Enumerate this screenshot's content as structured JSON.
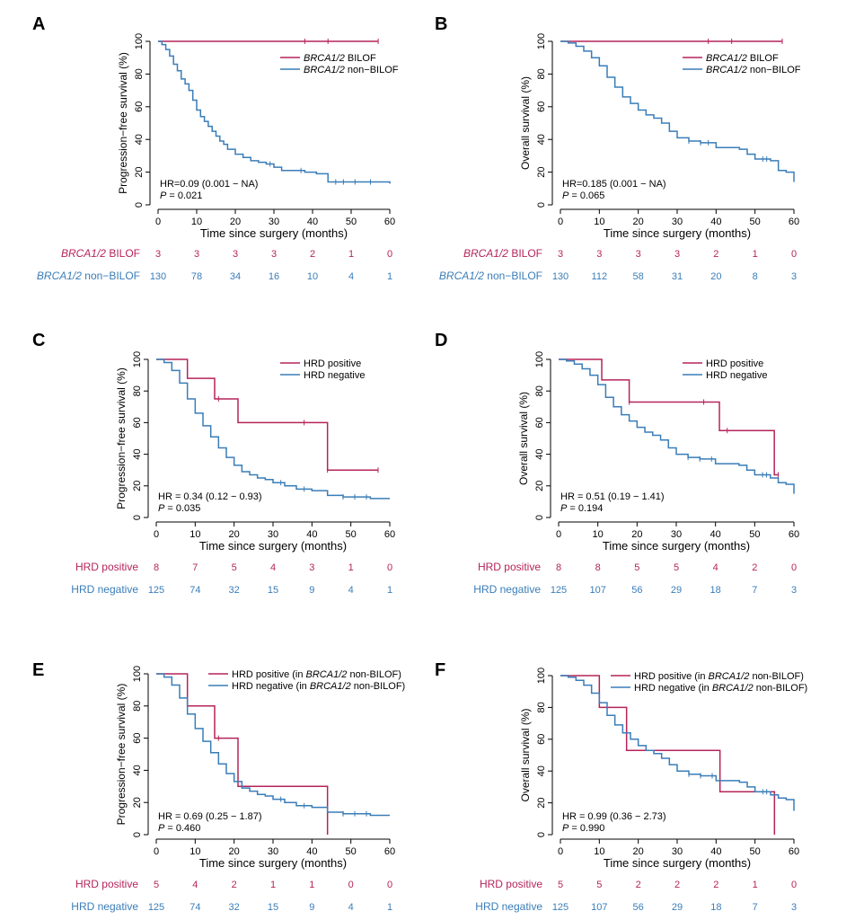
{
  "colors": {
    "group1": "#b5245a",
    "group2": "#3a7db8",
    "axis": "#000000"
  },
  "chart_data": [
    {
      "type": "line",
      "panel_label": "A",
      "ylabel": "Progression−free survival (%)",
      "xlabel": "Time since surgery (months)",
      "xlim": [
        0,
        60
      ],
      "ylim": [
        0,
        100
      ],
      "xticks": [
        "0",
        "10",
        "20",
        "30",
        "40",
        "50",
        "60"
      ],
      "yticks": [
        "0",
        "20",
        "40",
        "60",
        "80",
        "100"
      ],
      "legend": {
        "position": "top-right",
        "items": [
          {
            "prefix": "BRCA1/2",
            "suffix": " BILOF"
          },
          {
            "prefix": "BRCA1/2",
            "suffix": " non−BILOF"
          }
        ]
      },
      "series": [
        {
          "name": "BRCA1/2 BILOF",
          "color": "#b5245a",
          "x": [
            0,
            57
          ],
          "y": [
            100,
            100
          ],
          "censor": [
            38,
            44,
            57
          ]
        },
        {
          "name": "BRCA1/2 non-BILOF",
          "color": "#3a7db8",
          "x": [
            0,
            1,
            2,
            3,
            4,
            5,
            6,
            7,
            8,
            9,
            10,
            11,
            12,
            13,
            14,
            15,
            16,
            17,
            18,
            20,
            22,
            24,
            26,
            28,
            30,
            32,
            35,
            38,
            41,
            44,
            50,
            60
          ],
          "y": [
            100,
            98,
            95,
            91,
            86,
            82,
            77,
            74,
            70,
            64,
            58,
            54,
            51,
            48,
            45,
            42,
            39,
            37,
            34,
            31,
            29,
            27,
            26,
            25,
            23,
            21,
            21,
            20,
            19,
            14,
            14,
            13
          ],
          "censor": [
            29,
            37,
            46,
            48,
            51,
            55
          ]
        }
      ],
      "annotation": {
        "hr": "HR=0.09 (0.001 − NA)",
        "p_label": "P",
        "p_value": " = 0.021"
      },
      "risk_table": {
        "times": [
          0,
          10,
          20,
          30,
          40,
          50,
          60
        ],
        "rows": [
          {
            "label_prefix": "BRCA1/2",
            "label_suffix": " BILOF",
            "values": [
              "3",
              "3",
              "3",
              "3",
              "2",
              "1",
              "0"
            ]
          },
          {
            "label_prefix": "BRCA1/2",
            "label_suffix": " non−BILOF",
            "values": [
              "130",
              "78",
              "34",
              "16",
              "10",
              "4",
              "1"
            ]
          }
        ]
      }
    },
    {
      "type": "line",
      "panel_label": "B",
      "ylabel": "Overall survival (%)",
      "xlabel": "Time since surgery (months)",
      "xlim": [
        0,
        60
      ],
      "ylim": [
        0,
        100
      ],
      "xticks": [
        "0",
        "10",
        "20",
        "30",
        "40",
        "50",
        "60"
      ],
      "yticks": [
        "0",
        "20",
        "40",
        "60",
        "80",
        "100"
      ],
      "legend": {
        "position": "top-right",
        "items": [
          {
            "prefix": "BRCA1/2",
            "suffix": " BILOF"
          },
          {
            "prefix": "BRCA1/2",
            "suffix": " non−BILOF"
          }
        ]
      },
      "series": [
        {
          "name": "BRCA1/2 BILOF",
          "color": "#b5245a",
          "x": [
            0,
            57
          ],
          "y": [
            100,
            100
          ],
          "censor": [
            38,
            44,
            57
          ]
        },
        {
          "name": "BRCA1/2 non-BILOF",
          "color": "#3a7db8",
          "x": [
            0,
            2,
            4,
            6,
            8,
            10,
            12,
            14,
            16,
            18,
            20,
            22,
            24,
            26,
            28,
            30,
            33,
            36,
            40,
            44,
            46,
            48,
            50,
            54,
            56,
            58,
            60
          ],
          "y": [
            100,
            99,
            97,
            94,
            90,
            85,
            78,
            72,
            66,
            62,
            58,
            55,
            53,
            50,
            45,
            41,
            39,
            38,
            35,
            35,
            34,
            31,
            28,
            27,
            21,
            20,
            14
          ],
          "censor": [
            33,
            36,
            38,
            52,
            53
          ]
        }
      ],
      "annotation": {
        "hr": "HR=0.185 (0.001 − NA)",
        "p_label": "P",
        "p_value": " = 0.065"
      },
      "risk_table": {
        "times": [
          0,
          10,
          20,
          30,
          40,
          50,
          60
        ],
        "rows": [
          {
            "label_prefix": "BRCA1/2",
            "label_suffix": " BILOF",
            "values": [
              "3",
              "3",
              "3",
              "3",
              "2",
              "1",
              "0"
            ]
          },
          {
            "label_prefix": "BRCA1/2",
            "label_suffix": " non−BILOF",
            "values": [
              "130",
              "112",
              "58",
              "31",
              "20",
              "8",
              "3"
            ]
          }
        ]
      }
    },
    {
      "type": "line",
      "panel_label": "C",
      "ylabel": "Progression−free survival (%)",
      "xlabel": "Time since surgery (months)",
      "xlim": [
        0,
        60
      ],
      "ylim": [
        0,
        100
      ],
      "xticks": [
        "0",
        "10",
        "20",
        "30",
        "40",
        "50",
        "60"
      ],
      "yticks": [
        "0",
        "20",
        "40",
        "60",
        "80",
        "100"
      ],
      "legend": {
        "position": "top-right",
        "items": [
          {
            "prefix": "",
            "suffix": "HRD positive"
          },
          {
            "prefix": "",
            "suffix": "HRD negative"
          }
        ]
      },
      "series": [
        {
          "name": "HRD positive",
          "color": "#b5245a",
          "x": [
            0,
            8,
            15,
            21,
            44,
            57
          ],
          "y": [
            100,
            88,
            75,
            60,
            30,
            30
          ],
          "censor": [
            16,
            38,
            44,
            57
          ]
        },
        {
          "name": "HRD negative",
          "color": "#3a7db8",
          "x": [
            0,
            2,
            4,
            6,
            8,
            10,
            12,
            14,
            16,
            18,
            20,
            22,
            24,
            26,
            28,
            30,
            33,
            36,
            40,
            44,
            48,
            50,
            55,
            60
          ],
          "y": [
            100,
            98,
            93,
            85,
            75,
            66,
            58,
            51,
            44,
            38,
            33,
            29,
            27,
            25,
            24,
            22,
            20,
            18,
            17,
            14,
            13,
            13,
            12,
            12
          ],
          "censor": [
            32,
            38,
            48,
            51,
            54
          ]
        }
      ],
      "annotation": {
        "hr": "HR = 0.34 (0.12 − 0.93)",
        "p_label": "P",
        "p_value": " = 0.035"
      },
      "risk_table": {
        "times": [
          0,
          10,
          20,
          30,
          40,
          50,
          60
        ],
        "rows": [
          {
            "label_prefix": "",
            "label_suffix": "HRD positive",
            "values": [
              "8",
              "7",
              "5",
              "4",
              "3",
              "1",
              "0"
            ]
          },
          {
            "label_prefix": "",
            "label_suffix": "HRD negative",
            "values": [
              "125",
              "74",
              "32",
              "15",
              "9",
              "4",
              "1"
            ]
          }
        ]
      }
    },
    {
      "type": "line",
      "panel_label": "D",
      "ylabel": "Overall survival (%)",
      "xlabel": "Time since surgery (months)",
      "xlim": [
        0,
        60
      ],
      "ylim": [
        0,
        100
      ],
      "xticks": [
        "0",
        "10",
        "20",
        "30",
        "40",
        "50",
        "60"
      ],
      "yticks": [
        "0",
        "20",
        "40",
        "60",
        "80",
        "100"
      ],
      "legend": {
        "position": "top-right",
        "items": [
          {
            "prefix": "",
            "suffix": "HRD positive"
          },
          {
            "prefix": "",
            "suffix": "HRD negative"
          }
        ]
      },
      "series": [
        {
          "name": "HRD positive",
          "color": "#b5245a",
          "x": [
            0,
            11,
            18,
            41,
            55,
            56
          ],
          "y": [
            100,
            87,
            73,
            55,
            27,
            27
          ],
          "censor": [
            18,
            37,
            43,
            56
          ]
        },
        {
          "name": "HRD negative",
          "color": "#3a7db8",
          "x": [
            0,
            2,
            4,
            6,
            8,
            10,
            12,
            14,
            16,
            18,
            20,
            22,
            24,
            26,
            28,
            30,
            33,
            36,
            40,
            44,
            46,
            48,
            50,
            54,
            56,
            58,
            60
          ],
          "y": [
            100,
            99,
            97,
            94,
            90,
            84,
            76,
            70,
            65,
            61,
            57,
            54,
            52,
            49,
            44,
            40,
            38,
            37,
            34,
            34,
            33,
            30,
            27,
            25,
            22,
            21,
            15
          ],
          "censor": [
            33,
            36,
            39,
            52,
            53
          ]
        }
      ],
      "annotation": {
        "hr": "HR = 0.51 (0.19 − 1.41)",
        "p_label": "P",
        "p_value": " = 0.194"
      },
      "risk_table": {
        "times": [
          0,
          10,
          20,
          30,
          40,
          50,
          60
        ],
        "rows": [
          {
            "label_prefix": "",
            "label_suffix": "HRD positive",
            "values": [
              "8",
              "8",
              "5",
              "5",
              "4",
              "2",
              "0"
            ]
          },
          {
            "label_prefix": "",
            "label_suffix": "HRD negative",
            "values": [
              "125",
              "107",
              "56",
              "29",
              "18",
              "7",
              "3"
            ]
          }
        ]
      }
    },
    {
      "type": "line",
      "panel_label": "E",
      "ylabel": "Progression−free survival (%)",
      "xlabel": "Time since surgery (months)",
      "xlim": [
        0,
        60
      ],
      "ylim": [
        0,
        100
      ],
      "xticks": [
        "0",
        "10",
        "20",
        "30",
        "40",
        "50",
        "60"
      ],
      "yticks": [
        "0",
        "20",
        "40",
        "60",
        "80",
        "100"
      ],
      "legend": {
        "position": "top-right",
        "items": [
          {
            "prefix": "HRD positive (in ",
            "em": "BRCA1/2",
            "suffix": " non-BILOF)"
          },
          {
            "prefix": "HRD negative (in ",
            "em": "BRCA1/2",
            "suffix": " non-BILOF)"
          }
        ]
      },
      "series": [
        {
          "name": "HRD positive (in BRCA1/2 non-BILOF)",
          "color": "#b5245a",
          "x": [
            0,
            8,
            15,
            21,
            44
          ],
          "y": [
            100,
            80,
            60,
            30,
            0
          ],
          "censor": [
            16
          ]
        },
        {
          "name": "HRD negative (in BRCA1/2 non-BILOF)",
          "color": "#3a7db8",
          "x": [
            0,
            2,
            4,
            6,
            8,
            10,
            12,
            14,
            16,
            18,
            20,
            22,
            24,
            26,
            28,
            30,
            33,
            36,
            40,
            44,
            48,
            50,
            55,
            60
          ],
          "y": [
            100,
            98,
            93,
            85,
            75,
            66,
            58,
            51,
            44,
            38,
            33,
            29,
            27,
            25,
            24,
            22,
            20,
            18,
            17,
            14,
            13,
            13,
            12,
            12
          ],
          "censor": [
            32,
            38,
            48,
            51,
            54
          ]
        }
      ],
      "annotation": {
        "hr": "HR = 0.69 (0.25 − 1.87)",
        "p_label": "P",
        "p_value": " = 0.460"
      },
      "risk_table": {
        "times": [
          0,
          10,
          20,
          30,
          40,
          50,
          60
        ],
        "rows": [
          {
            "label_prefix": "",
            "label_suffix": "HRD positive",
            "values": [
              "5",
              "4",
              "2",
              "1",
              "1",
              "0",
              "0"
            ]
          },
          {
            "label_prefix": "",
            "label_suffix": "HRD negative",
            "values": [
              "125",
              "74",
              "32",
              "15",
              "9",
              "4",
              "1"
            ]
          }
        ]
      }
    },
    {
      "type": "line",
      "panel_label": "F",
      "ylabel": "Overall survival (%)",
      "xlabel": "Time since surgery (months)",
      "xlim": [
        0,
        60
      ],
      "ylim": [
        0,
        100
      ],
      "xticks": [
        "0",
        "10",
        "20",
        "30",
        "40",
        "50",
        "60"
      ],
      "yticks": [
        "0",
        "20",
        "40",
        "60",
        "80",
        "100"
      ],
      "legend": {
        "position": "top-right",
        "items": [
          {
            "prefix": "HRD positive (in ",
            "em": "BRCA1/2",
            "suffix": " non-BILOF)"
          },
          {
            "prefix": "HRD negative (in ",
            "em": "BRCA1/2",
            "suffix": " non-BILOF)"
          }
        ]
      },
      "series": [
        {
          "name": "HRD positive (in BRCA1/2 non-BILOF)",
          "color": "#b5245a",
          "x": [
            0,
            10,
            17,
            41,
            55
          ],
          "y": [
            100,
            80,
            53,
            27,
            0
          ],
          "censor": []
        },
        {
          "name": "HRD negative (in BRCA1/2 non-BILOF)",
          "color": "#3a7db8",
          "x": [
            0,
            2,
            4,
            6,
            8,
            10,
            12,
            14,
            16,
            18,
            20,
            22,
            24,
            26,
            28,
            30,
            33,
            36,
            40,
            44,
            46,
            48,
            50,
            54,
            56,
            58,
            60
          ],
          "y": [
            100,
            99,
            97,
            94,
            89,
            83,
            75,
            69,
            64,
            60,
            56,
            53,
            51,
            48,
            44,
            40,
            38,
            37,
            34,
            34,
            33,
            30,
            27,
            25,
            23,
            22,
            15
          ],
          "censor": [
            33,
            36,
            39,
            52,
            53
          ]
        }
      ],
      "annotation": {
        "hr": "HR = 0.99 (0.36 − 2.73)",
        "p_label": "P",
        "p_value": " = 0.990"
      },
      "risk_table": {
        "times": [
          0,
          10,
          20,
          30,
          40,
          50,
          60
        ],
        "rows": [
          {
            "label_prefix": "",
            "label_suffix": "HRD positive",
            "values": [
              "5",
              "5",
              "2",
              "2",
              "2",
              "1",
              "0"
            ]
          },
          {
            "label_prefix": "",
            "label_suffix": "HRD negative",
            "values": [
              "125",
              "107",
              "56",
              "29",
              "18",
              "7",
              "3"
            ]
          }
        ]
      }
    }
  ]
}
